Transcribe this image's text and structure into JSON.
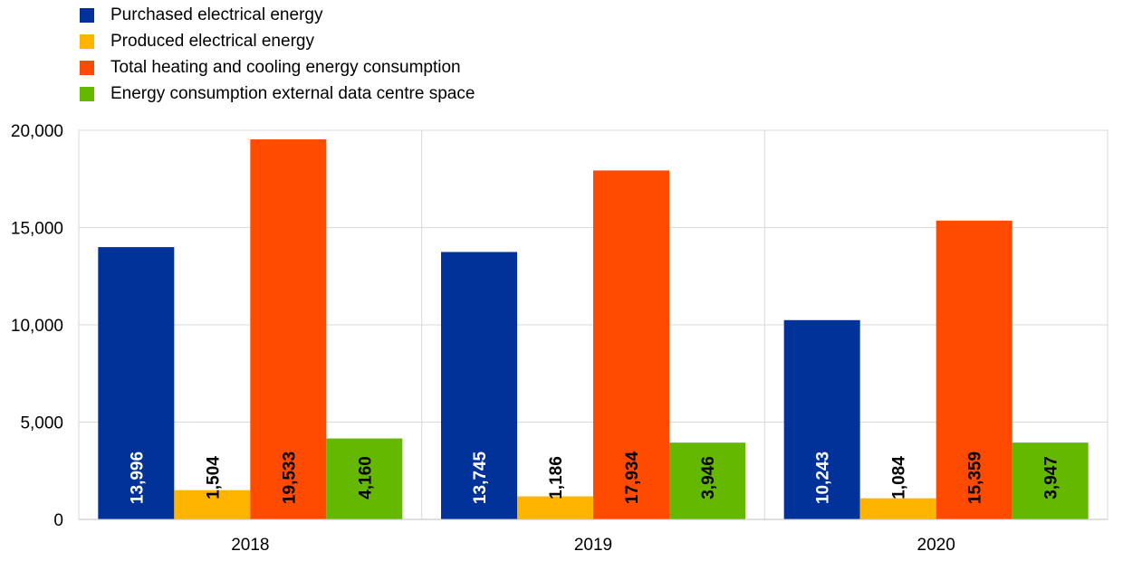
{
  "chart_data": {
    "type": "bar",
    "categories": [
      "2018",
      "2019",
      "2020"
    ],
    "series": [
      {
        "name": "Purchased electrical energy",
        "color": "#003299",
        "values": [
          13996,
          13745,
          10243
        ],
        "labels": [
          "13,996",
          "13,745",
          "10,243"
        ],
        "label_color": "#ffffff"
      },
      {
        "name": "Produced electrical energy",
        "color": "#ffb400",
        "values": [
          1504,
          1186,
          1084
        ],
        "labels": [
          "1,504",
          "1,186",
          "1,084"
        ],
        "label_color": "#000000"
      },
      {
        "name": "Total heating and cooling energy consumption",
        "color": "#ff4b00",
        "values": [
          19533,
          17934,
          15359
        ],
        "labels": [
          "19,533",
          "17,934",
          "15,359"
        ],
        "label_color": "#000000"
      },
      {
        "name": "Energy consumption external data centre space",
        "color": "#65b800",
        "values": [
          4160,
          3946,
          3947
        ],
        "labels": [
          "4,160",
          "3,946",
          "3,947"
        ],
        "label_color": "#000000"
      }
    ],
    "yticks": [
      0,
      5000,
      10000,
      15000,
      20000
    ],
    "ytick_labels": [
      "0",
      "5,000",
      "10,000",
      "15,000",
      "20,000"
    ],
    "ylim": [
      0,
      20000
    ],
    "title": "",
    "xlabel": "",
    "ylabel": "",
    "grid": true,
    "legend_position": "top-left",
    "data_labels": "vertical-inside-bars"
  }
}
